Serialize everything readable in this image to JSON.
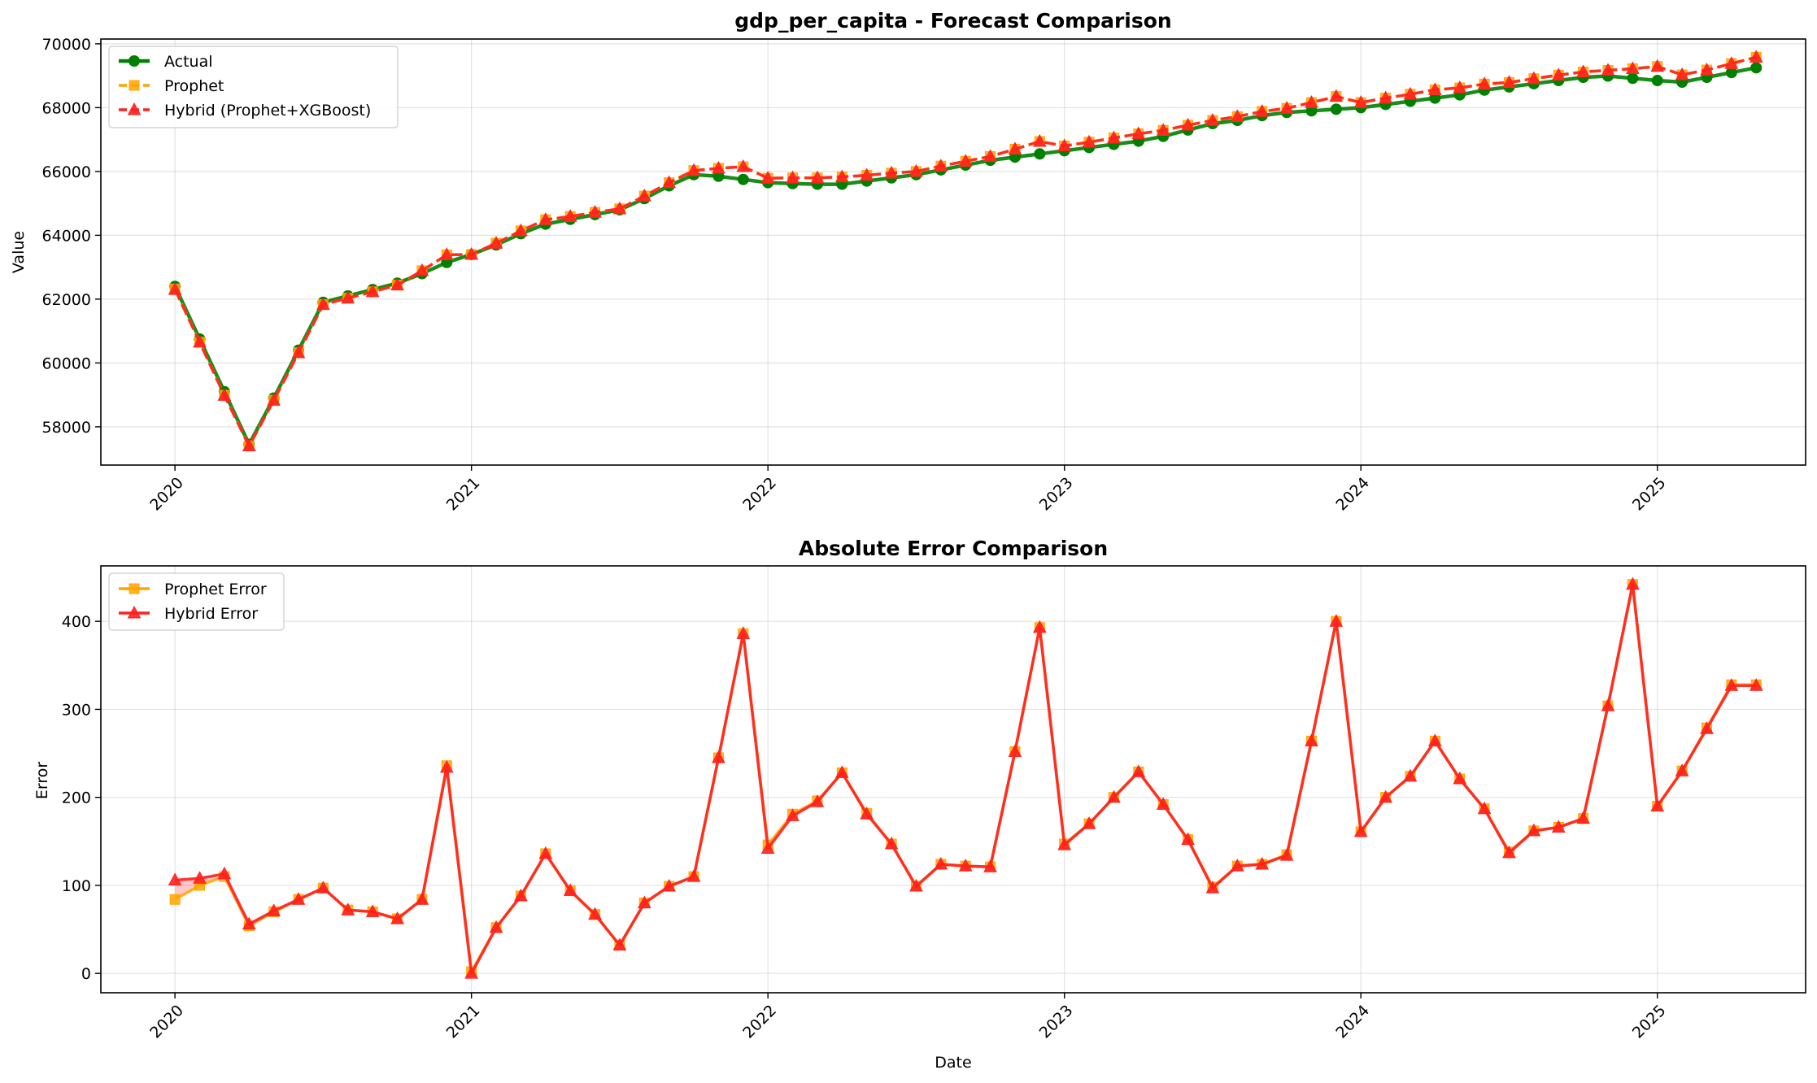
{
  "chart_data": [
    {
      "type": "line",
      "title": "gdp_per_capita - Forecast Comparison",
      "xlabel": "",
      "ylabel": "Value",
      "x_start": "2020-01",
      "x_tick_labels": [
        "2020",
        "2021",
        "2022",
        "2023",
        "2024",
        "2025"
      ],
      "xlim": [
        "2019-10",
        "2025-07"
      ],
      "ylim": [
        56800,
        70150
      ],
      "y_ticks": [
        58000,
        60000,
        62000,
        64000,
        66000,
        68000,
        70000
      ],
      "grid": true,
      "legend_position": "top-left",
      "series": [
        {
          "name": "Actual",
          "color": "#008000",
          "marker": "circle",
          "line_style": "solid",
          "values": [
            62400,
            60750,
            59100,
            57450,
            58900,
            60400,
            61900,
            62100,
            62300,
            62500,
            62800,
            63150,
            63400,
            63700,
            64050,
            64350,
            64500,
            64650,
            64800,
            65150,
            65550,
            65900,
            65850,
            65750,
            65650,
            65620,
            65600,
            65600,
            65700,
            65800,
            65900,
            66050,
            66200,
            66350,
            66450,
            66550,
            66650,
            66750,
            66850,
            66950,
            67100,
            67300,
            67500,
            67600,
            67750,
            67850,
            67900,
            67950,
            68000,
            68100,
            68200,
            68300,
            68400,
            68550,
            68650,
            68750,
            68850,
            68950,
            68990,
            68920,
            68850,
            68800,
            68950,
            69100,
            69250
          ]
        },
        {
          "name": "Prophet",
          "color": "#FFA500",
          "marker": "square",
          "line_style": "dashed",
          "values": [
            62320,
            60650,
            58990,
            57400,
            58830,
            60320,
            61830,
            62030,
            62230,
            62440,
            62890,
            63390,
            63400,
            63750,
            64140,
            64490,
            64590,
            64720,
            64830,
            65230,
            65650,
            66030,
            66100,
            66150,
            65790,
            65800,
            65800,
            65830,
            65880,
            65950,
            66000,
            66170,
            66320,
            66470,
            66700,
            66940,
            66800,
            66920,
            67050,
            67180,
            67290,
            67450,
            67600,
            67720,
            67880,
            67980,
            68160,
            68350,
            68160,
            68300,
            68420,
            68560,
            68620,
            68740,
            68790,
            68910,
            69020,
            69120,
            69170,
            69220,
            69290,
            69030,
            69180,
            69380,
            69580
          ]
        },
        {
          "name": "Hybrid (Prophet+XGBoost)",
          "color": "#FF2020",
          "marker": "triangle",
          "line_style": "dashed",
          "values": [
            62300,
            60650,
            58980,
            57400,
            58830,
            60320,
            61830,
            62030,
            62230,
            62440,
            62890,
            63390,
            63400,
            63750,
            64140,
            64490,
            64590,
            64720,
            64830,
            65230,
            65650,
            66030,
            66100,
            66150,
            65790,
            65800,
            65800,
            65830,
            65880,
            65950,
            66000,
            66170,
            66320,
            66470,
            66700,
            66940,
            66800,
            66920,
            67050,
            67180,
            67290,
            67450,
            67600,
            67720,
            67880,
            67980,
            68160,
            68350,
            68160,
            68300,
            68420,
            68560,
            68620,
            68740,
            68790,
            68910,
            69020,
            69120,
            69170,
            69220,
            69290,
            69030,
            69180,
            69380,
            69580
          ]
        }
      ]
    },
    {
      "type": "line",
      "title": "Absolute Error Comparison",
      "xlabel": "Date",
      "ylabel": "Error",
      "x_start": "2020-01",
      "x_tick_labels": [
        "2020",
        "2021",
        "2022",
        "2023",
        "2024",
        "2025"
      ],
      "xlim": [
        "2019-10",
        "2025-07"
      ],
      "ylim": [
        -22,
        463
      ],
      "y_ticks": [
        0,
        100,
        200,
        300,
        400
      ],
      "grid": true,
      "legend_position": "top-left",
      "shaded_difference_color": "#FF6060",
      "series": [
        {
          "name": "Prophet Error",
          "color": "#FFA500",
          "marker": "square",
          "line_style": "solid",
          "values": [
            84,
            100,
            110,
            54,
            70,
            84,
            97,
            72,
            70,
            62,
            84,
            236,
            2,
            52,
            88,
            136,
            94,
            67,
            32,
            80,
            99,
            110,
            245,
            386,
            146,
            181,
            196,
            228,
            182,
            147,
            99,
            124,
            122,
            121,
            252,
            393,
            147,
            170,
            200,
            229,
            192,
            152,
            98,
            122,
            124,
            135,
            264,
            400,
            161,
            200,
            224,
            264,
            221,
            187,
            138,
            162,
            166,
            176,
            304,
            442,
            190,
            230,
            279,
            328,
            328
          ]
        },
        {
          "name": "Hybrid Error",
          "color": "#FF2020",
          "marker": "triangle",
          "line_style": "solid",
          "values": [
            106,
            108,
            113,
            56,
            71,
            84,
            97,
            72,
            70,
            62,
            84,
            234,
            0,
            52,
            88,
            136,
            94,
            67,
            32,
            80,
            99,
            110,
            245,
            386,
            142,
            179,
            195,
            228,
            181,
            147,
            99,
            124,
            122,
            121,
            252,
            393,
            146,
            170,
            200,
            229,
            192,
            152,
            97,
            122,
            124,
            134,
            264,
            400,
            161,
            200,
            224,
            264,
            221,
            187,
            137,
            162,
            166,
            176,
            304,
            442,
            190,
            230,
            278,
            327,
            327
          ]
        }
      ]
    }
  ]
}
